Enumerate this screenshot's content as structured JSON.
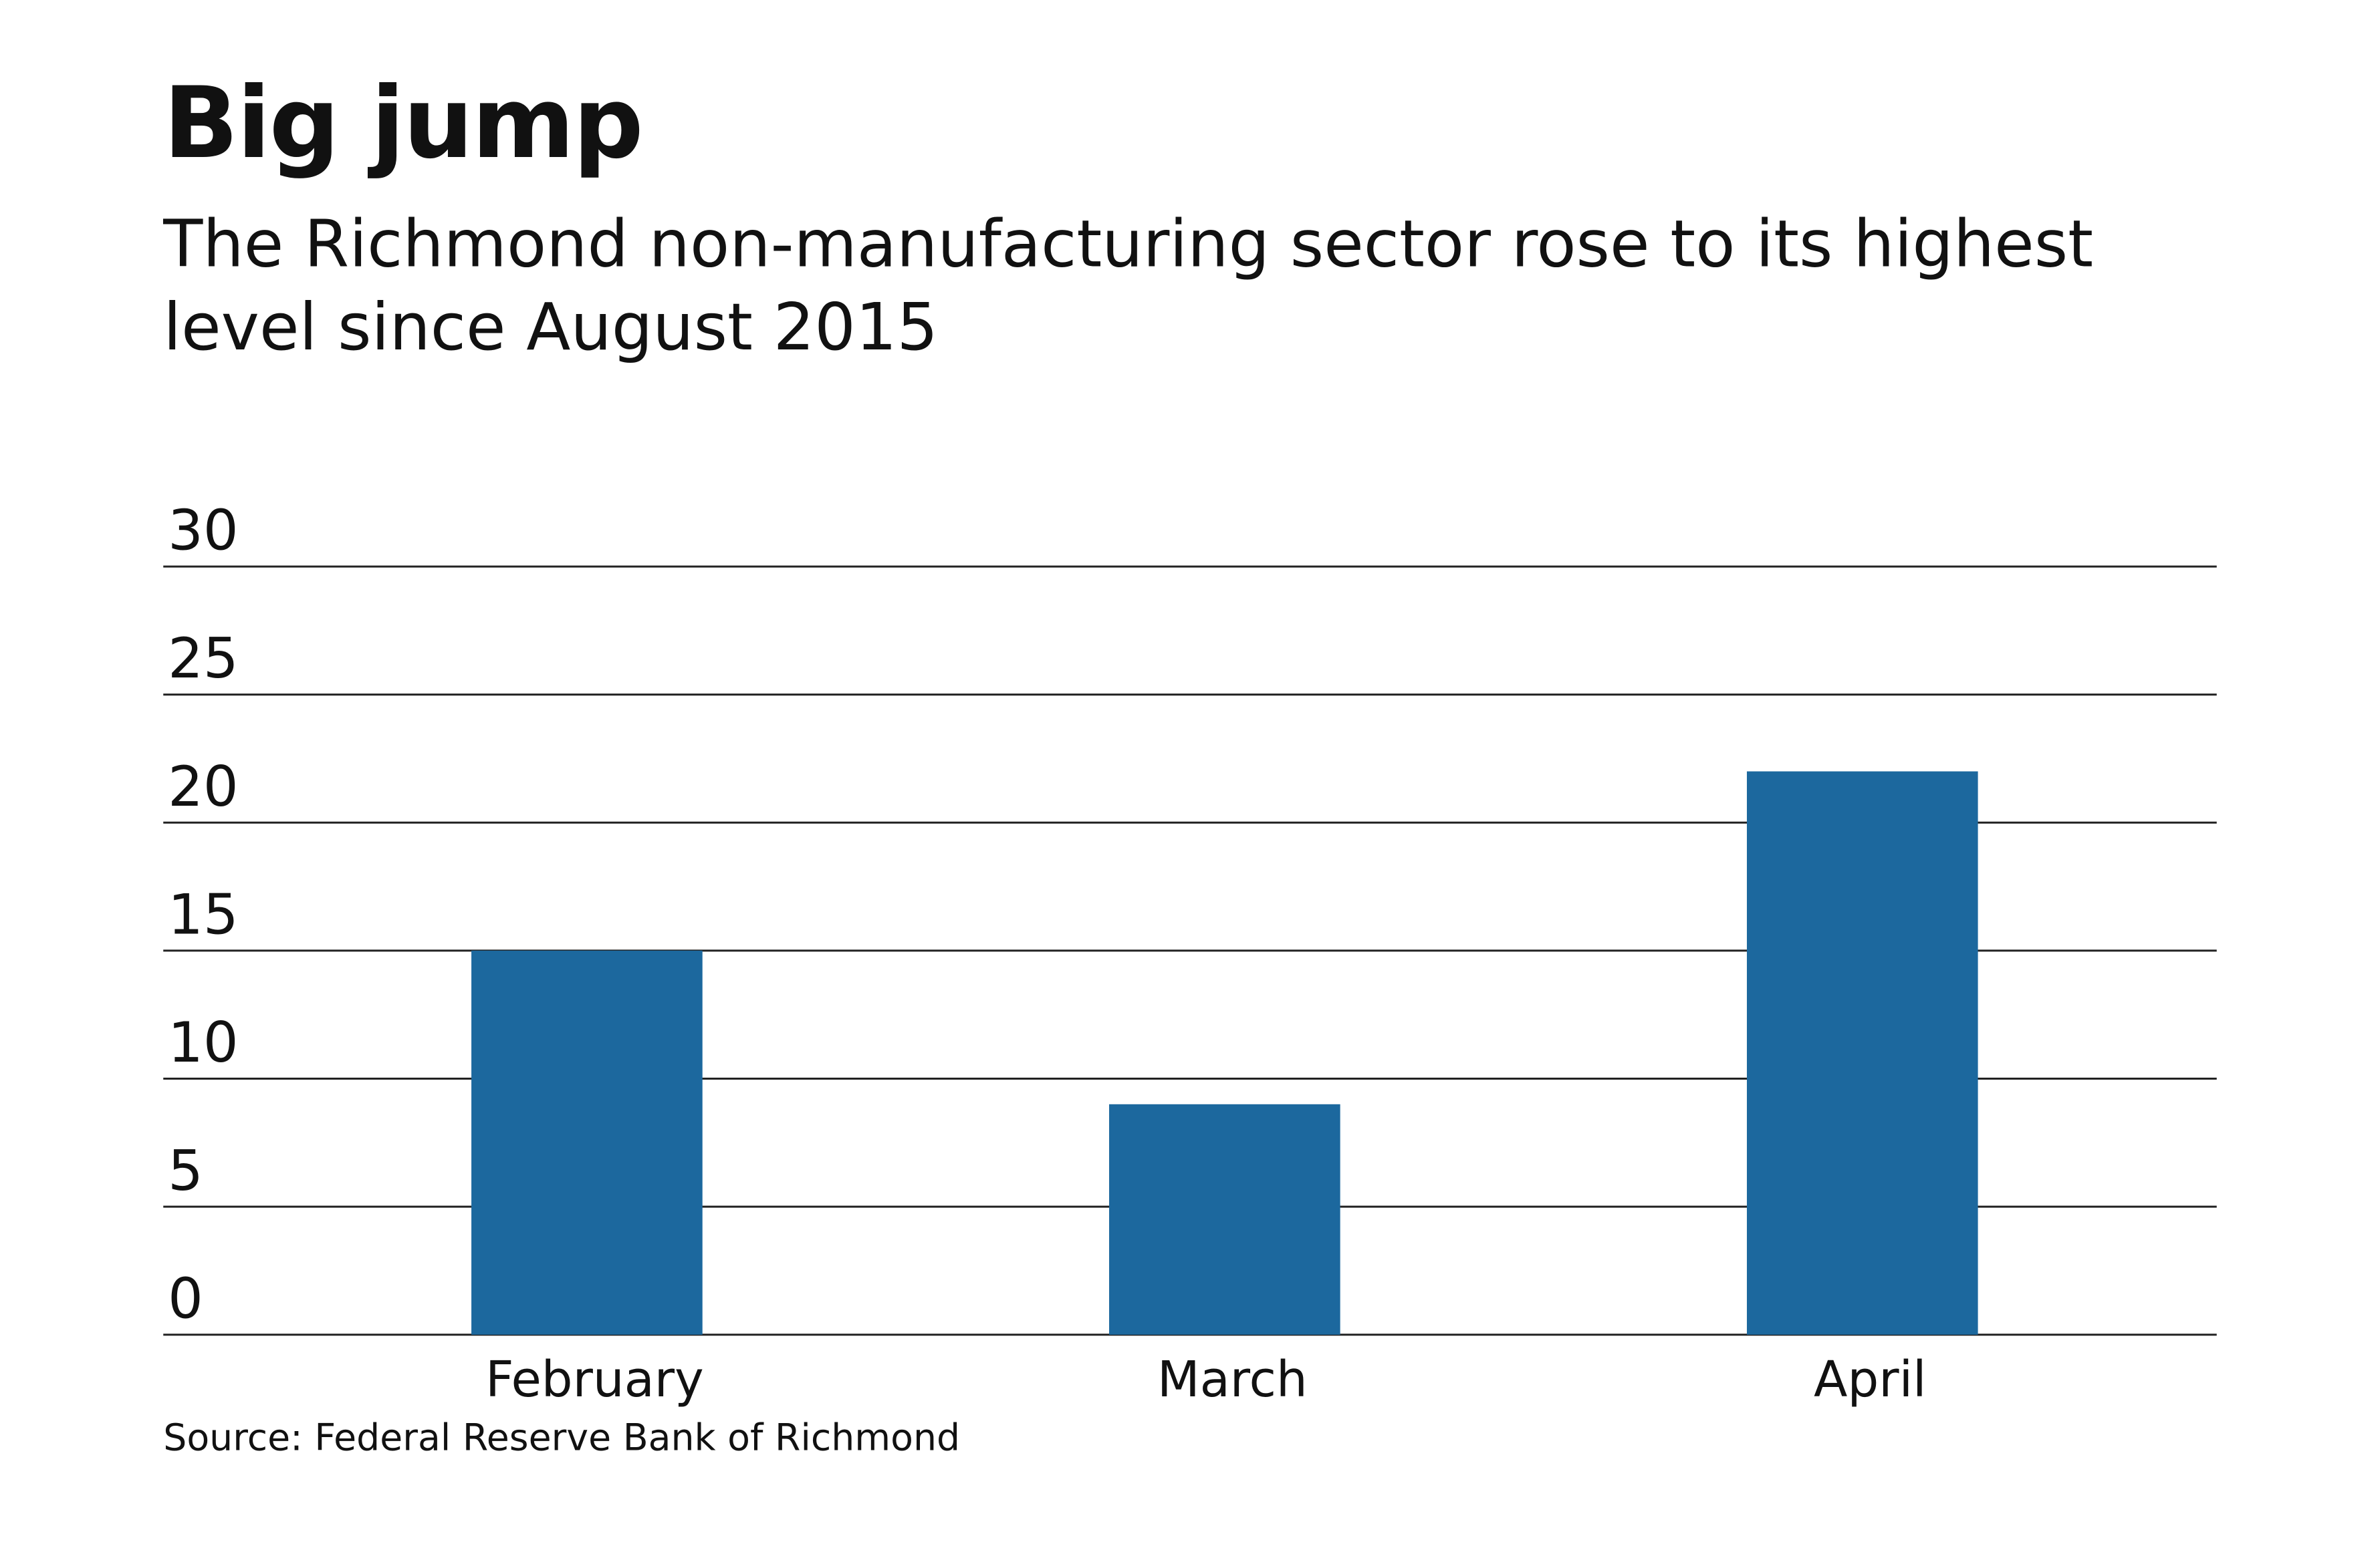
{
  "chart_data": {
    "type": "bar",
    "title": "Big jump",
    "subtitle": "The Richmond non-manufacturing sector rose to its highest level since August 2015",
    "categories": [
      "February",
      "March",
      "April"
    ],
    "values": [
      15,
      9,
      22
    ],
    "color": "#1c689e",
    "ylim": [
      0,
      30
    ],
    "yticks": [
      0,
      5,
      10,
      15,
      20,
      25,
      30
    ],
    "grid": true,
    "source": "Source: Federal Reserve Bank of Richmond"
  }
}
